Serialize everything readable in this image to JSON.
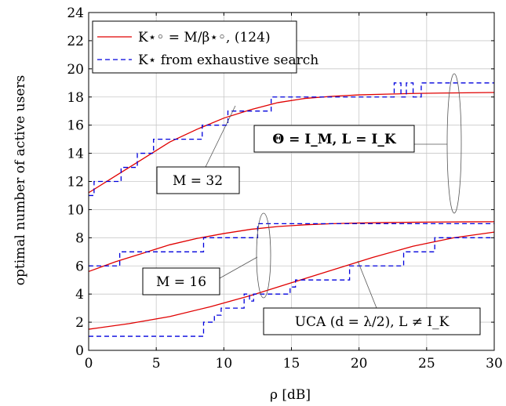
{
  "chart_data": {
    "type": "line",
    "title": "",
    "xlabel": "ρ [dB]",
    "ylabel": "optimal number of active users",
    "xlim": [
      0,
      30
    ],
    "ylim": [
      0,
      24
    ],
    "xticks": [
      0,
      5,
      10,
      15,
      20,
      25,
      30
    ],
    "yticks": [
      0,
      2,
      4,
      6,
      8,
      10,
      12,
      14,
      16,
      18,
      20,
      22,
      24
    ],
    "grid": true,
    "legend_position": "top-left",
    "legend": [
      {
        "label": "K⋆◦ = M/β⋆◦, (124)",
        "style": "solid",
        "color": "#e00000"
      },
      {
        "label": "K⋆ from exhaustive search",
        "style": "dashed",
        "color": "#0000dd"
      }
    ],
    "annotations": {
      "m32": "M = 32",
      "m16": "M = 16",
      "theta": "Θ = I_M, L = I_K",
      "uca": "UCA (d = λ/2), L ≠ I_K"
    },
    "series": [
      {
        "name": "K⋆◦ = M/β⋆◦, (124)",
        "group": "M=32",
        "color": "#e00000",
        "x": [
          0,
          2,
          4,
          6,
          8,
          10,
          12,
          14,
          16,
          18,
          20,
          22,
          24,
          26,
          28,
          30
        ],
        "y": [
          11.2,
          12.4,
          13.6,
          14.8,
          15.7,
          16.5,
          17.1,
          17.6,
          17.9,
          18.05,
          18.15,
          18.2,
          18.25,
          18.28,
          18.3,
          18.32
        ]
      },
      {
        "name": "K⋆ from exhaustive search",
        "group": "M=32",
        "color": "#0000dd",
        "x": [
          0,
          0.4,
          1.2,
          2.4,
          3.6,
          4.8,
          6.3,
          8.4,
          10.3,
          13.5,
          22.0,
          22.6,
          23.1,
          23.5,
          24.0,
          24.6,
          25.5,
          30
        ],
        "y": [
          11,
          12,
          12,
          13,
          14,
          15,
          15,
          16,
          17,
          18,
          18,
          19,
          18,
          19,
          18,
          19,
          19,
          19
        ]
      },
      {
        "name": "K⋆◦ = M/β⋆◦, (124)",
        "group": "M=16",
        "color": "#e00000",
        "x": [
          0,
          2,
          4,
          6,
          8,
          10,
          12,
          14,
          16,
          18,
          20,
          22,
          24,
          26,
          28,
          30
        ],
        "y": [
          5.6,
          6.3,
          6.9,
          7.5,
          7.95,
          8.3,
          8.6,
          8.8,
          8.92,
          9.0,
          9.05,
          9.08,
          9.1,
          9.12,
          9.13,
          9.14
        ],
        "label_in_legend": false
      },
      {
        "name": "K⋆ from exhaustive search",
        "group": "M=16",
        "color": "#0000dd",
        "x": [
          0,
          2.3,
          4.4,
          8.5,
          12.5,
          30
        ],
        "y": [
          6,
          7,
          7,
          8,
          9,
          9
        ]
      },
      {
        "name": "K⋆◦ = M/β⋆◦, (124)",
        "group": "UCA",
        "color": "#e00000",
        "x": [
          0,
          3,
          6,
          9,
          12,
          15,
          18,
          21,
          24,
          27,
          30
        ],
        "y": [
          1.5,
          1.9,
          2.4,
          3.1,
          3.9,
          4.8,
          5.7,
          6.6,
          7.4,
          8.0,
          8.4
        ]
      },
      {
        "name": "K⋆ from exhaustive search",
        "group": "UCA",
        "color": "#0000dd",
        "x": [
          0,
          8.5,
          9.3,
          9.8,
          10.7,
          11.5,
          11.9,
          12.2,
          12.6,
          13.0,
          14.9,
          15.3,
          15.7,
          16.2,
          19.3,
          21.6,
          23.3,
          25.6,
          30
        ],
        "y": [
          1,
          2,
          2.5,
          3,
          3,
          4,
          3.5,
          4,
          4,
          4,
          4.5,
          5,
          5,
          5,
          6,
          6,
          7,
          8,
          8
        ]
      }
    ]
  }
}
